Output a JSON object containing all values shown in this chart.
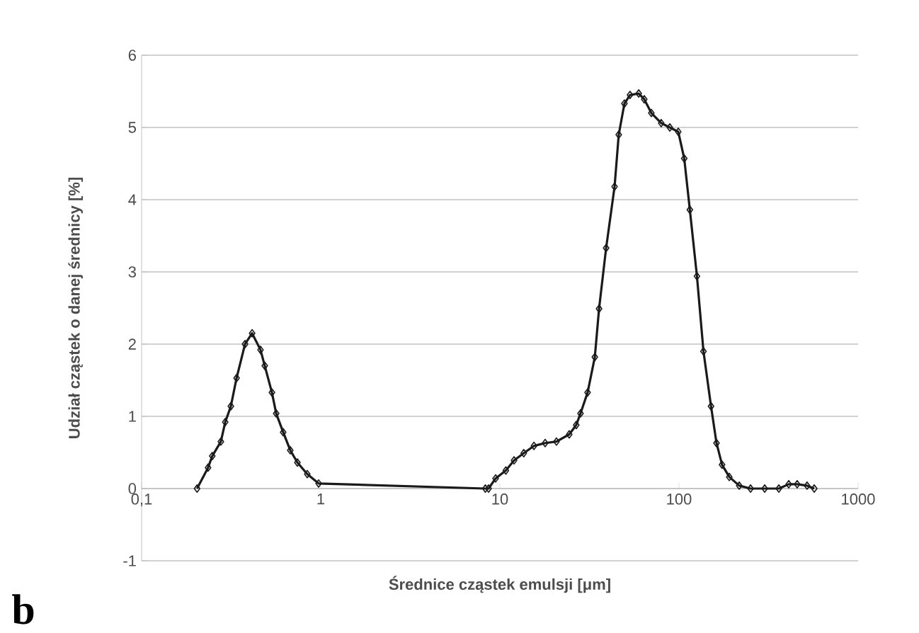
{
  "chart_data": {
    "type": "line",
    "xlabel": "Średnice cząstek emulsji [μm]",
    "ylabel": "Udział cząstek o danej średnicy [%]",
    "annotations": [
      "b"
    ],
    "log": "x",
    "grid": "y",
    "marker": "diamond",
    "line_style": "solid",
    "xlim": [
      0.1,
      1000
    ],
    "ylim": [
      -1,
      6
    ],
    "xticks": [
      {
        "value": 0.1,
        "label": "0,1"
      },
      1,
      10,
      100,
      1000
    ],
    "yticks": [
      -1,
      0,
      1,
      2,
      3,
      4,
      5,
      6
    ],
    "series": [
      {
        "color": "#1a1a1a",
        "x": [
          0.204,
          0.235,
          0.248,
          0.277,
          0.293,
          0.315,
          0.339,
          0.378,
          0.414,
          0.461,
          0.487,
          0.534,
          0.564,
          0.617,
          0.676,
          0.741,
          0.841,
          0.973,
          8.3,
          8.65,
          9.47,
          10.8,
          12.0,
          13.6,
          15.5,
          17.9,
          20.7,
          24.4,
          26.7,
          28.2,
          30.9,
          33.9,
          35.8,
          39.2,
          43.7,
          46.1,
          49.6,
          53.3,
          59.6,
          64.0,
          70.1,
          79.6,
          88.9,
          99.1,
          107,
          115,
          126,
          137,
          151,
          162,
          174,
          191,
          217,
          251,
          301,
          361,
          410,
          457,
          519,
          569
        ],
        "values": [
          0,
          0.29,
          0.45,
          0.65,
          0.92,
          1.14,
          1.53,
          2.0,
          2.15,
          1.92,
          1.7,
          1.33,
          1.04,
          0.78,
          0.53,
          0.36,
          0.2,
          0.07,
          0,
          0,
          0.14,
          0.25,
          0.39,
          0.49,
          0.59,
          0.63,
          0.65,
          0.75,
          0.88,
          1.04,
          1.33,
          1.82,
          2.49,
          3.33,
          4.18,
          4.9,
          5.33,
          5.45,
          5.47,
          5.39,
          5.2,
          5.06,
          5.0,
          4.94,
          4.57,
          3.86,
          2.94,
          1.9,
          1.14,
          0.63,
          0.33,
          0.16,
          0.04,
          0,
          0,
          0,
          0.06,
          0.06,
          0.04,
          0
        ]
      }
    ]
  }
}
